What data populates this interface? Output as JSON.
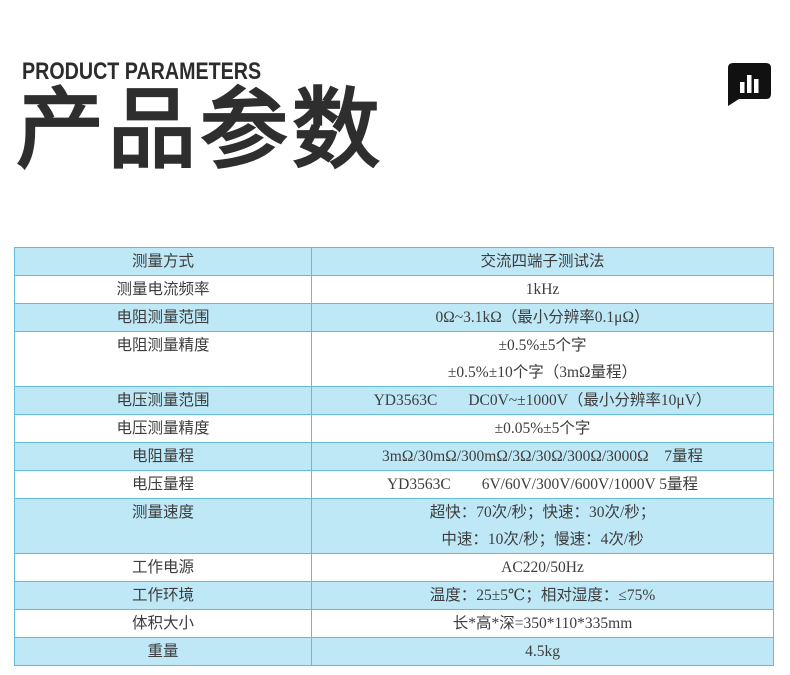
{
  "header": {
    "eyebrow": "PRODUCT PARAMETERS",
    "title": "产品参数",
    "icon": "bar-chart-speech-bubble-icon"
  },
  "colors": {
    "row_highlight_blue": "#bfe8f7",
    "table_border": "#63bcd9",
    "heading_text": "#2e2e2e",
    "table_text": "#3d3d3d",
    "icon_black": "#111111"
  },
  "table": {
    "rows": [
      {
        "label": "测量方式",
        "lines": [
          "交流四端子测试法"
        ]
      },
      {
        "label": "测量电流频率",
        "lines": [
          "1kHz"
        ]
      },
      {
        "label": "电阻测量范围",
        "lines": [
          "0Ω~3.1kΩ（最小分辨率0.1μΩ）"
        ]
      },
      {
        "label": "电阻测量精度",
        "lines": [
          "±0.5%±5个字",
          "±0.5%±10个字（3mΩ量程）"
        ]
      },
      {
        "label": "电压测量范围",
        "lines": [
          "YD3563C　　DC0V~±1000V（最小分辨率10μV）"
        ]
      },
      {
        "label": "电压测量精度",
        "lines": [
          "±0.05%±5个字"
        ]
      },
      {
        "label": "电阻量程",
        "lines": [
          "3mΩ/30mΩ/300mΩ/3Ω/30Ω/300Ω/3000Ω　7量程"
        ]
      },
      {
        "label": "电压量程",
        "lines": [
          "YD3563C　　6V/60V/300V/600V/1000V 5量程"
        ]
      },
      {
        "label": "测量速度",
        "lines": [
          "超快：70次/秒；快速：30次/秒；",
          "中速：10次/秒；慢速：4次/秒"
        ]
      },
      {
        "label": "工作电源",
        "lines": [
          "AC220/50Hz"
        ]
      },
      {
        "label": "工作环境",
        "lines": [
          "温度：25±5℃；相对湿度：≤75%"
        ]
      },
      {
        "label": "体积大小",
        "lines": [
          "长*高*深=350*110*335mm"
        ]
      },
      {
        "label": "重量",
        "lines": [
          "4.5kg"
        ]
      }
    ]
  }
}
